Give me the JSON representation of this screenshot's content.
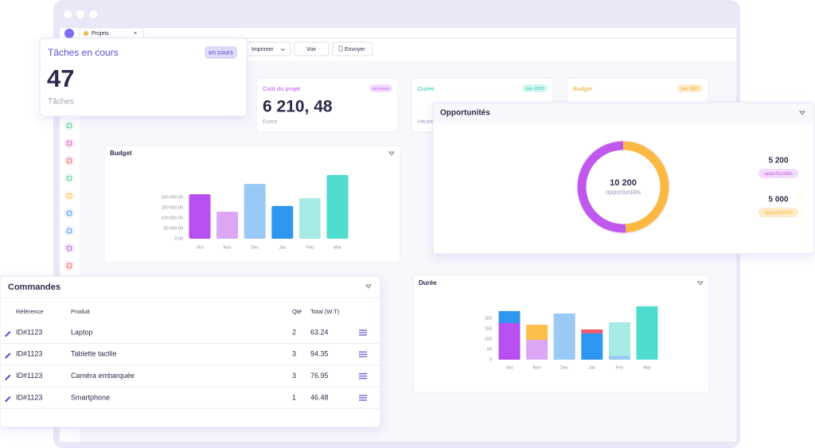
{
  "window": {
    "tab": "Projets",
    "close": "×"
  },
  "toolbar": [
    "Imprimer",
    "Voir",
    "Envoyer"
  ],
  "task_card": {
    "title": "Tâches en cours",
    "badge": "en cours",
    "value": 47,
    "unit": "Tâches"
  },
  "stat_cards": [
    {
      "title": "Coût du projet",
      "badge": "en cours",
      "value": "6 210, 48",
      "unit": "Euros"
    },
    {
      "title": "Durée",
      "badge": "juin 2022",
      "unit": "Heures"
    },
    {
      "title": "Budget",
      "badge": "juin 2022"
    }
  ],
  "chart_data": [
    {
      "type": "bar",
      "title": "Budget",
      "categories": [
        "Oct",
        "Nov",
        "Dec",
        "Jan",
        "Feb",
        "Mar"
      ],
      "values": [
        215000,
        131000,
        265000,
        158000,
        196000,
        308000
      ],
      "colors": [
        "#b84ff0",
        "#dca6f5",
        "#99c9f5",
        "#2f96ef",
        "#a6ece4",
        "#4edccf"
      ],
      "ylim": [
        0,
        320000
      ],
      "yticks": [
        {
          "value": 0,
          "label": "0,00"
        },
        {
          "value": 50000,
          "label": "50 000,00"
        },
        {
          "value": 100000,
          "label": "100 000,00"
        },
        {
          "value": 150000,
          "label": "150 000,00"
        },
        {
          "value": 200000,
          "label": "200 000,00"
        }
      ]
    },
    {
      "type": "donut",
      "title": "Opportunités",
      "total": 10200,
      "total_label": "10 200",
      "center_label": "opportunités",
      "values": [
        5000,
        5200
      ],
      "value_labels": [
        "5 000",
        "5 200"
      ],
      "labels": [
        "opportunités",
        "opportunités"
      ],
      "colors": [
        "#fbb944",
        "#c158ee"
      ]
    },
    {
      "type": "stacked_bar",
      "title": "Durée",
      "categories": [
        "Oct",
        "Nov",
        "Dec",
        "Jan",
        "Feb",
        "Mar"
      ],
      "series": [
        {
          "colors": [
            "#b84ff0",
            "#dca6f5",
            "#99c9f5",
            "#2f96ef",
            "#99c9f5",
            "#4edccf"
          ],
          "values": [
            177,
            96,
            223,
            127,
            19,
            258
          ]
        },
        {
          "colors": [
            "#2f96ef",
            "#fbbf4a",
            null,
            "#ec5b6e",
            "#a6ece4",
            null
          ],
          "values": [
            58,
            73,
            null,
            19,
            162,
            null
          ]
        }
      ],
      "ylim": [
        0,
        270
      ],
      "yticks": [
        0,
        50,
        100,
        150,
        200
      ]
    }
  ],
  "orders_table": {
    "title": "Commandes",
    "columns": [
      "Référence",
      "Produit",
      "Qté",
      "Total (W.T)"
    ],
    "rows": [
      [
        "ID#1123",
        "Laptop",
        2,
        63.24
      ],
      [
        "ID#1123",
        "Tablette tactile",
        3,
        94.35
      ],
      [
        "ID#1123",
        "Caméra embarquée",
        3,
        76.95
      ],
      [
        "ID#1123",
        "Smartphone",
        1,
        46.48
      ]
    ]
  }
}
